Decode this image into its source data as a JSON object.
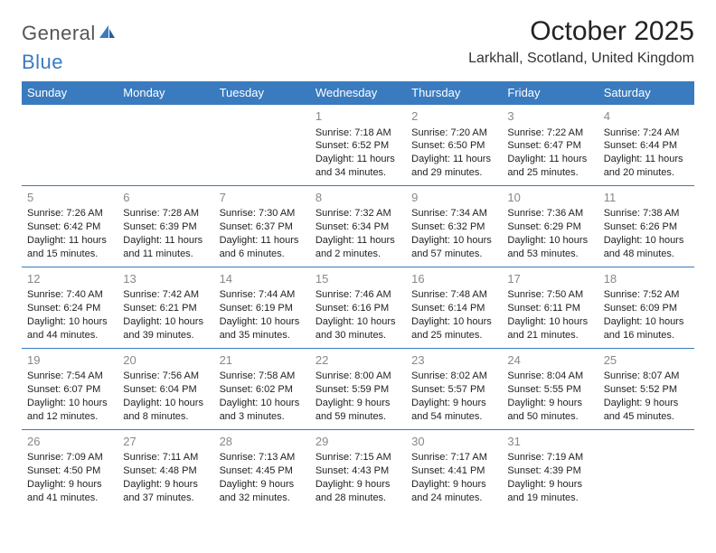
{
  "brand": {
    "part1": "General",
    "part2": "Blue",
    "accent_color": "#3a7bbf",
    "text_color": "#555555"
  },
  "title": "October 2025",
  "location": "Larkhall, Scotland, United Kingdom",
  "header_bg": "#3a7bbf",
  "header_fg": "#ffffff",
  "border_color": "#3a7bbf",
  "daynum_color": "#888888",
  "days_of_week": [
    "Sunday",
    "Monday",
    "Tuesday",
    "Wednesday",
    "Thursday",
    "Friday",
    "Saturday"
  ],
  "weeks": [
    [
      null,
      null,
      null,
      {
        "n": "1",
        "sr": "7:18 AM",
        "ss": "6:52 PM",
        "dl": "11 hours and 34 minutes."
      },
      {
        "n": "2",
        "sr": "7:20 AM",
        "ss": "6:50 PM",
        "dl": "11 hours and 29 minutes."
      },
      {
        "n": "3",
        "sr": "7:22 AM",
        "ss": "6:47 PM",
        "dl": "11 hours and 25 minutes."
      },
      {
        "n": "4",
        "sr": "7:24 AM",
        "ss": "6:44 PM",
        "dl": "11 hours and 20 minutes."
      }
    ],
    [
      {
        "n": "5",
        "sr": "7:26 AM",
        "ss": "6:42 PM",
        "dl": "11 hours and 15 minutes."
      },
      {
        "n": "6",
        "sr": "7:28 AM",
        "ss": "6:39 PM",
        "dl": "11 hours and 11 minutes."
      },
      {
        "n": "7",
        "sr": "7:30 AM",
        "ss": "6:37 PM",
        "dl": "11 hours and 6 minutes."
      },
      {
        "n": "8",
        "sr": "7:32 AM",
        "ss": "6:34 PM",
        "dl": "11 hours and 2 minutes."
      },
      {
        "n": "9",
        "sr": "7:34 AM",
        "ss": "6:32 PM",
        "dl": "10 hours and 57 minutes."
      },
      {
        "n": "10",
        "sr": "7:36 AM",
        "ss": "6:29 PM",
        "dl": "10 hours and 53 minutes."
      },
      {
        "n": "11",
        "sr": "7:38 AM",
        "ss": "6:26 PM",
        "dl": "10 hours and 48 minutes."
      }
    ],
    [
      {
        "n": "12",
        "sr": "7:40 AM",
        "ss": "6:24 PM",
        "dl": "10 hours and 44 minutes."
      },
      {
        "n": "13",
        "sr": "7:42 AM",
        "ss": "6:21 PM",
        "dl": "10 hours and 39 minutes."
      },
      {
        "n": "14",
        "sr": "7:44 AM",
        "ss": "6:19 PM",
        "dl": "10 hours and 35 minutes."
      },
      {
        "n": "15",
        "sr": "7:46 AM",
        "ss": "6:16 PM",
        "dl": "10 hours and 30 minutes."
      },
      {
        "n": "16",
        "sr": "7:48 AM",
        "ss": "6:14 PM",
        "dl": "10 hours and 25 minutes."
      },
      {
        "n": "17",
        "sr": "7:50 AM",
        "ss": "6:11 PM",
        "dl": "10 hours and 21 minutes."
      },
      {
        "n": "18",
        "sr": "7:52 AM",
        "ss": "6:09 PM",
        "dl": "10 hours and 16 minutes."
      }
    ],
    [
      {
        "n": "19",
        "sr": "7:54 AM",
        "ss": "6:07 PM",
        "dl": "10 hours and 12 minutes."
      },
      {
        "n": "20",
        "sr": "7:56 AM",
        "ss": "6:04 PM",
        "dl": "10 hours and 8 minutes."
      },
      {
        "n": "21",
        "sr": "7:58 AM",
        "ss": "6:02 PM",
        "dl": "10 hours and 3 minutes."
      },
      {
        "n": "22",
        "sr": "8:00 AM",
        "ss": "5:59 PM",
        "dl": "9 hours and 59 minutes."
      },
      {
        "n": "23",
        "sr": "8:02 AM",
        "ss": "5:57 PM",
        "dl": "9 hours and 54 minutes."
      },
      {
        "n": "24",
        "sr": "8:04 AM",
        "ss": "5:55 PM",
        "dl": "9 hours and 50 minutes."
      },
      {
        "n": "25",
        "sr": "8:07 AM",
        "ss": "5:52 PM",
        "dl": "9 hours and 45 minutes."
      }
    ],
    [
      {
        "n": "26",
        "sr": "7:09 AM",
        "ss": "4:50 PM",
        "dl": "9 hours and 41 minutes."
      },
      {
        "n": "27",
        "sr": "7:11 AM",
        "ss": "4:48 PM",
        "dl": "9 hours and 37 minutes."
      },
      {
        "n": "28",
        "sr": "7:13 AM",
        "ss": "4:45 PM",
        "dl": "9 hours and 32 minutes."
      },
      {
        "n": "29",
        "sr": "7:15 AM",
        "ss": "4:43 PM",
        "dl": "9 hours and 28 minutes."
      },
      {
        "n": "30",
        "sr": "7:17 AM",
        "ss": "4:41 PM",
        "dl": "9 hours and 24 minutes."
      },
      {
        "n": "31",
        "sr": "7:19 AM",
        "ss": "4:39 PM",
        "dl": "9 hours and 19 minutes."
      },
      null
    ]
  ],
  "labels": {
    "sunrise": "Sunrise: ",
    "sunset": "Sunset: ",
    "daylight": "Daylight: "
  }
}
